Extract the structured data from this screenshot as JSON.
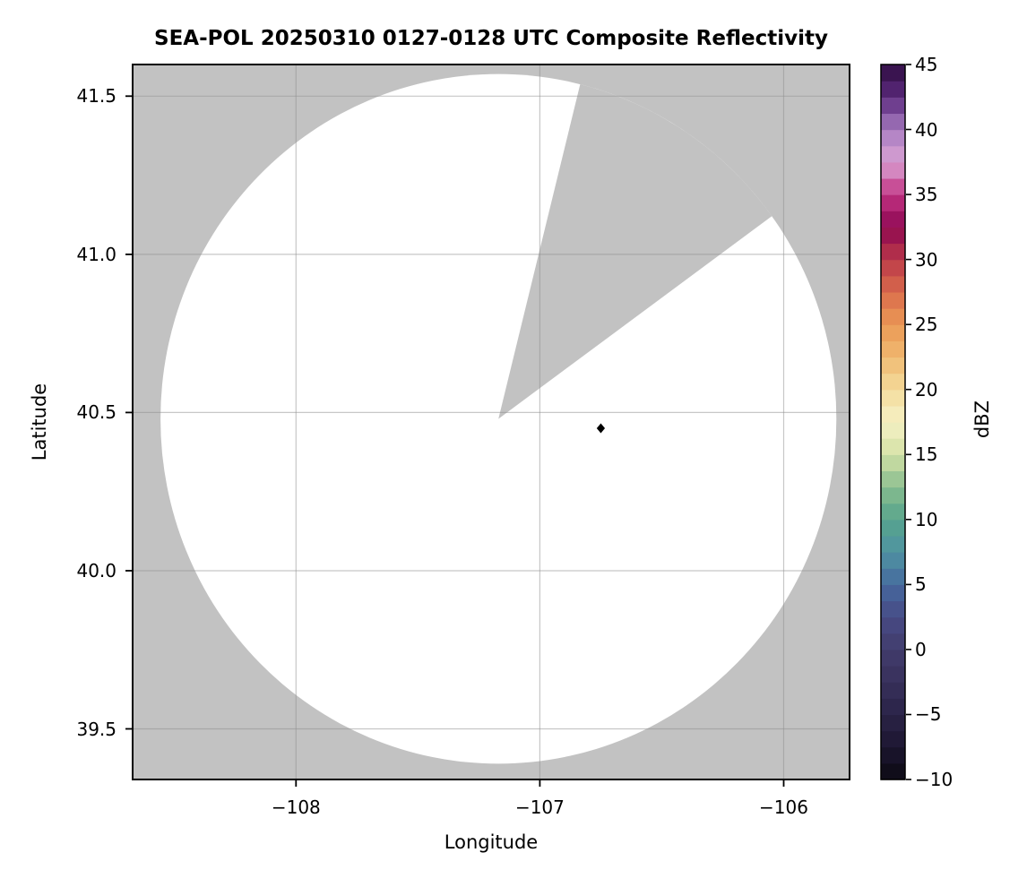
{
  "figure": {
    "background_color": "#ffffff"
  },
  "chart_data": {
    "type": "radar_ppi_pcolormesh",
    "title": "SEA-POL 20250310 0127-0128 UTC Composite Reflectivity",
    "xlabel": "Longitude",
    "ylabel": "Latitude",
    "xlim": [
      -108.67,
      -105.73
    ],
    "ylim": [
      39.34,
      41.6
    ],
    "xticks": [
      -108,
      -107,
      -106
    ],
    "xtick_labels": [
      "−108",
      "−107",
      "−106"
    ],
    "yticks": [
      41.5,
      41.0,
      40.5,
      40.0,
      39.5
    ],
    "ytick_labels": [
      "41.5",
      "41.0",
      "40.5",
      "40.0",
      "39.5"
    ],
    "grid": true,
    "grid_color": "#909090",
    "grid_opacity": 0.5,
    "frame_color": "#000000",
    "nodata_color": "#c2c2c2",
    "coverage_color": "#ffffff",
    "radar": {
      "center_lon": -107.17,
      "center_lat": 40.48,
      "radius_lon_deg": 1.386,
      "radius_lat_deg": 1.09,
      "missing_sector_azimuth_start_deg": 14,
      "missing_sector_azimuth_end_deg": 54
    },
    "points": [
      {
        "lon": -106.75,
        "lat": 40.45,
        "marker": "diamond",
        "color": "#000000"
      }
    ],
    "colorbar": {
      "label": "dBZ",
      "min": -10,
      "max": 45,
      "band_step_dbz": 1.25,
      "ticks": [
        45,
        40,
        35,
        30,
        25,
        20,
        15,
        10,
        5,
        0,
        -5,
        -10
      ],
      "tick_labels": [
        "45",
        "40",
        "35",
        "30",
        "25",
        "20",
        "15",
        "10",
        "5",
        "0",
        "−5",
        "−10"
      ],
      "anchor_stops": [
        {
          "dbz": -10.0,
          "color": "#0c0a12"
        },
        {
          "dbz": -7.5,
          "color": "#1c1630"
        },
        {
          "dbz": -5.0,
          "color": "#2a2347"
        },
        {
          "dbz": -2.5,
          "color": "#37305b"
        },
        {
          "dbz": 0.0,
          "color": "#423c6c"
        },
        {
          "dbz": 2.5,
          "color": "#474a85"
        },
        {
          "dbz": 5.0,
          "color": "#46699e"
        },
        {
          "dbz": 7.5,
          "color": "#4f93a2"
        },
        {
          "dbz": 10.0,
          "color": "#57a48c"
        },
        {
          "dbz": 12.5,
          "color": "#88bd8f"
        },
        {
          "dbz": 15.0,
          "color": "#d3e1a5"
        },
        {
          "dbz": 17.5,
          "color": "#f5f1c5"
        },
        {
          "dbz": 20.0,
          "color": "#f4dc9b"
        },
        {
          "dbz": 22.5,
          "color": "#f0b971"
        },
        {
          "dbz": 25.0,
          "color": "#eb9955"
        },
        {
          "dbz": 27.5,
          "color": "#da6b4b"
        },
        {
          "dbz": 30.0,
          "color": "#bb3a49"
        },
        {
          "dbz": 32.5,
          "color": "#8d0751"
        },
        {
          "dbz": 35.0,
          "color": "#c23383"
        },
        {
          "dbz": 37.5,
          "color": "#daa3d4"
        },
        {
          "dbz": 40.0,
          "color": "#a87cc1"
        },
        {
          "dbz": 42.5,
          "color": "#5c2a7e"
        },
        {
          "dbz": 45.0,
          "color": "#2f0d40"
        }
      ]
    }
  }
}
